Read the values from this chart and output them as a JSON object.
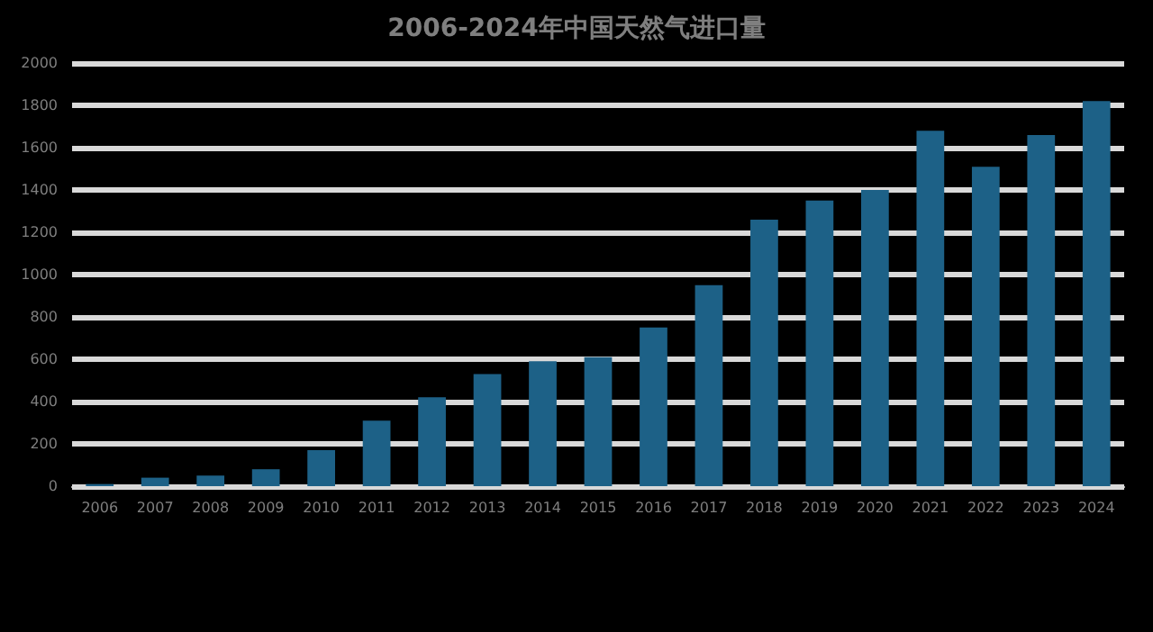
{
  "chart_data": {
    "type": "bar",
    "title": "2006-2024年中国天然气进口量",
    "categories": [
      "2006",
      "2007",
      "2008",
      "2009",
      "2010",
      "2011",
      "2012",
      "2013",
      "2014",
      "2015",
      "2016",
      "2017",
      "2018",
      "2019",
      "2020",
      "2021",
      "2022",
      "2023",
      "2024"
    ],
    "values": [
      10,
      40,
      50,
      80,
      170,
      310,
      420,
      530,
      590,
      610,
      750,
      950,
      1260,
      1350,
      1400,
      1680,
      1510,
      1660,
      1820
    ],
    "color": "#1d6187",
    "ylim": [
      0,
      2000
    ],
    "yticks": [
      0,
      200,
      400,
      600,
      800,
      1000,
      1200,
      1400,
      1600,
      1800,
      2000
    ],
    "grid": "y"
  }
}
